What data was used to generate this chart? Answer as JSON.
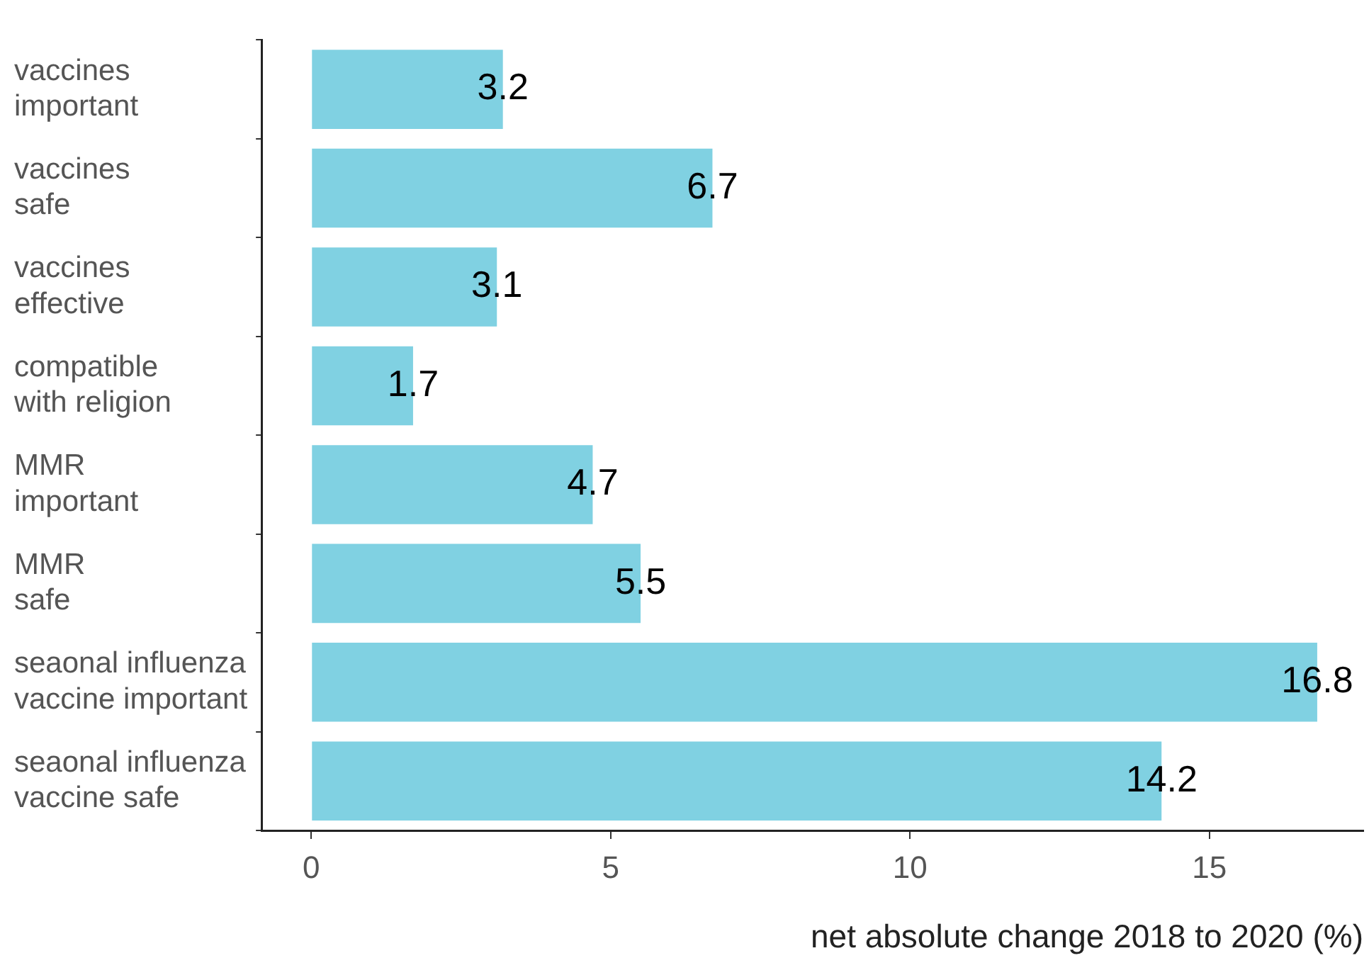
{
  "chart_data": {
    "type": "bar",
    "orientation": "horizontal",
    "xlabel": "net absolute change 2018 to 2020 (%)",
    "categories": [
      "vaccines\nimportant",
      "vaccines\nsafe",
      "vaccines\neffective",
      "compatible\nwith religion",
      "MMR\nimportant",
      "MMR\nsafe",
      "seaonal influenza\nvaccine important",
      "seaonal influenza\nvaccine safe"
    ],
    "values": [
      3.2,
      6.7,
      3.1,
      1.7,
      4.7,
      5.5,
      16.8,
      14.2
    ],
    "color": "#80d1e2",
    "xlim": [
      -0.83,
      17.57
    ],
    "xticks": [
      0,
      5,
      10,
      15
    ],
    "grid": false,
    "legend": false,
    "data_labels": true
  }
}
